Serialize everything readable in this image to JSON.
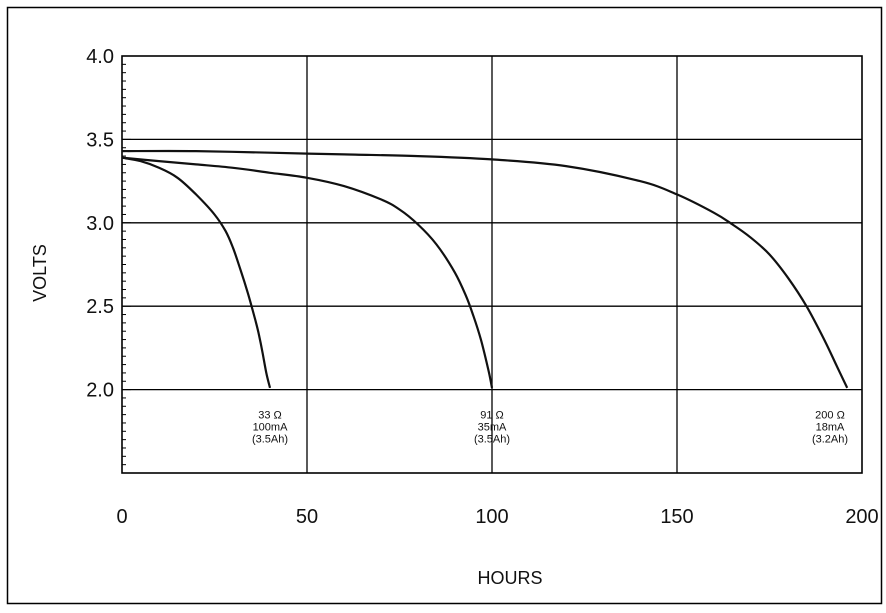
{
  "chart_data": {
    "type": "line",
    "xlabel": "HOURS",
    "ylabel": "VOLTS",
    "xlim": [
      0,
      200
    ],
    "ylim": [
      1.5,
      4.0
    ],
    "grid": true,
    "x_ticks": [
      "0",
      "50",
      "100",
      "150",
      "200"
    ],
    "y_ticks": [
      "2.0",
      "2.5",
      "3.0",
      "3.5",
      "4.0"
    ],
    "series": [
      {
        "x": [
          0,
          5,
          10,
          15,
          20,
          25,
          28,
          30,
          32,
          34,
          36,
          37,
          38,
          39,
          40
        ],
        "y": [
          3.39,
          3.37,
          3.33,
          3.27,
          3.17,
          3.05,
          2.95,
          2.85,
          2.72,
          2.58,
          2.42,
          2.33,
          2.22,
          2.1,
          2.01
        ],
        "annotation": [
          "33 Ω",
          "100mA",
          "(3.5Ah)"
        ]
      },
      {
        "x": [
          0,
          10,
          20,
          30,
          40,
          50,
          60,
          70,
          75,
          80,
          85,
          90,
          93,
          95,
          97,
          99,
          100
        ],
        "y": [
          3.39,
          3.37,
          3.35,
          3.33,
          3.3,
          3.27,
          3.22,
          3.14,
          3.08,
          2.99,
          2.87,
          2.7,
          2.56,
          2.44,
          2.3,
          2.12,
          2.01
        ],
        "annotation": [
          "91 Ω",
          "35mA",
          "(3.5Ah)"
        ]
      },
      {
        "x": [
          0,
          20,
          40,
          60,
          80,
          100,
          120,
          140,
          150,
          160,
          165,
          170,
          175,
          180,
          185,
          190,
          193,
          196
        ],
        "y": [
          3.43,
          3.43,
          3.42,
          3.41,
          3.4,
          3.38,
          3.34,
          3.25,
          3.17,
          3.06,
          2.99,
          2.91,
          2.81,
          2.67,
          2.5,
          2.29,
          2.15,
          2.01
        ],
        "annotation": [
          "200 Ω",
          "18mA",
          "(3.2Ah)"
        ]
      }
    ]
  }
}
